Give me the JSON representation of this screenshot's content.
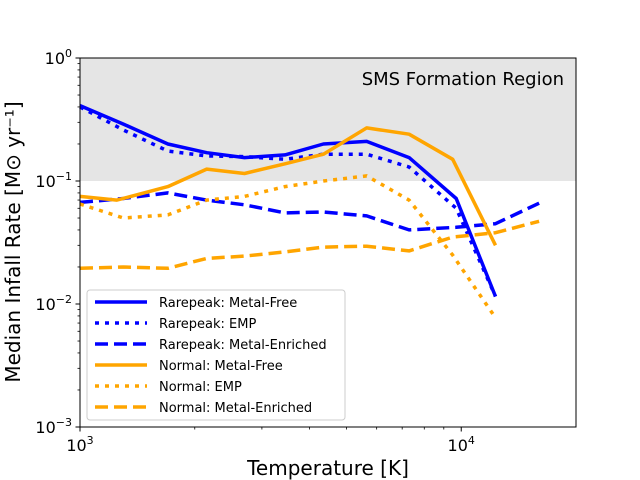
{
  "chart_data": {
    "type": "line",
    "xscale": "log",
    "yscale": "log",
    "xlim": [
      1000,
      20000
    ],
    "ylim": [
      0.001,
      1
    ],
    "xlabel": "Temperature [K]",
    "ylabel": "Median Infall Rate [M⊙ yr⁻¹]",
    "x_ticks": [
      {
        "value": 1000,
        "base": "10",
        "exp": "3"
      },
      {
        "value": 10000,
        "base": "10",
        "exp": "4"
      }
    ],
    "y_ticks": [
      {
        "value": 0.001,
        "base": "10",
        "exp": "−3"
      },
      {
        "value": 0.01,
        "base": "10",
        "exp": "−2"
      },
      {
        "value": 0.1,
        "base": "10",
        "exp": "−1"
      },
      {
        "value": 1,
        "base": "10",
        "exp": "0"
      }
    ],
    "shaded_region": {
      "label": "SMS Formation Region",
      "ymin": 0.1,
      "ymax": 1,
      "color": "#e5e5e5"
    },
    "grid": false,
    "legend_position": "lower-left",
    "series": [
      {
        "name": "Rarepeak: Metal-Free",
        "color": "#0000ff",
        "style": "solid",
        "x": [
          1000,
          1300,
          1700,
          2150,
          2700,
          3450,
          4350,
          5650,
          7300,
          9700,
          12300
        ],
        "y": [
          0.41,
          0.29,
          0.2,
          0.17,
          0.155,
          0.163,
          0.2,
          0.21,
          0.155,
          0.072,
          0.0115
        ]
      },
      {
        "name": "Rarepeak: EMP",
        "color": "#0000ff",
        "style": "dotted",
        "x": [
          1000,
          1300,
          1700,
          2150,
          2700,
          3450,
          4350,
          5650,
          7300,
          9700,
          12300
        ],
        "y": [
          0.4,
          0.26,
          0.175,
          0.16,
          0.158,
          0.15,
          0.165,
          0.165,
          0.13,
          0.06,
          0.0115
        ]
      },
      {
        "name": "Rarepeak: Metal-Enriched",
        "color": "#0000ff",
        "style": "dashed",
        "x": [
          1000,
          1300,
          1700,
          2150,
          2700,
          3450,
          4350,
          5650,
          7300,
          9700,
          12300,
          16000
        ],
        "y": [
          0.067,
          0.072,
          0.08,
          0.07,
          0.064,
          0.055,
          0.056,
          0.052,
          0.04,
          0.042,
          0.045,
          0.066
        ]
      },
      {
        "name": "Normal: Metal-Free",
        "color": "#ffa500",
        "style": "solid",
        "x": [
          1000,
          1250,
          1700,
          2150,
          2700,
          3450,
          4350,
          5650,
          7300,
          9500,
          12300
        ],
        "y": [
          0.075,
          0.07,
          0.09,
          0.125,
          0.115,
          0.138,
          0.165,
          0.27,
          0.24,
          0.15,
          0.03
        ]
      },
      {
        "name": "Normal: EMP",
        "color": "#ffa500",
        "style": "dotted",
        "x": [
          1000,
          1300,
          1700,
          2150,
          2700,
          3450,
          4350,
          5650,
          7300,
          9500,
          12200
        ],
        "y": [
          0.065,
          0.05,
          0.053,
          0.07,
          0.075,
          0.09,
          0.1,
          0.11,
          0.07,
          0.025,
          0.008
        ]
      },
      {
        "name": "Normal: Metal-Enriched",
        "color": "#ffa500",
        "style": "dashed",
        "x": [
          1000,
          1300,
          1700,
          2150,
          2700,
          3450,
          4350,
          5650,
          7300,
          9500,
          12300,
          16000
        ],
        "y": [
          0.0195,
          0.02,
          0.0195,
          0.0235,
          0.0245,
          0.0265,
          0.029,
          0.0295,
          0.027,
          0.035,
          0.038,
          0.047
        ]
      }
    ]
  }
}
